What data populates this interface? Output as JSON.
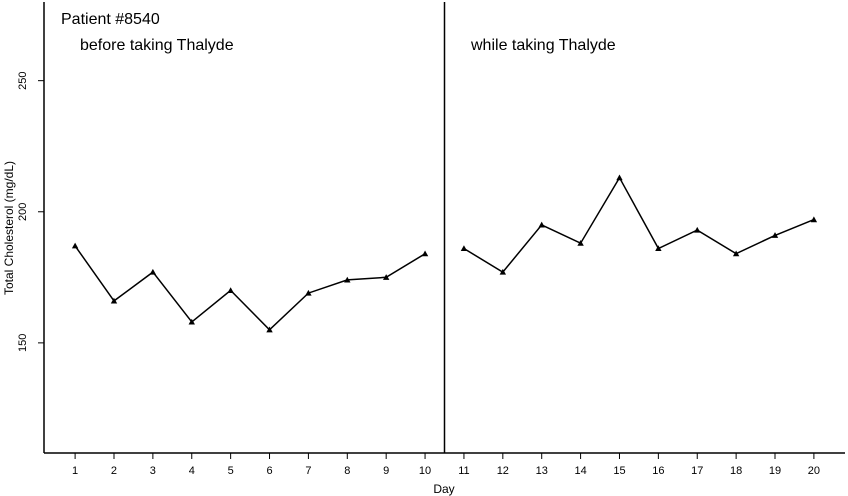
{
  "chart_data": {
    "type": "line",
    "title": "Patient #8540",
    "xlabel": "Day",
    "ylabel": "Total Cholesterol (mg/dL)",
    "xlim": [
      0.2,
      20.8
    ],
    "ylim": [
      108,
      280
    ],
    "yticks": [
      150,
      200,
      250
    ],
    "xticks": [
      1,
      2,
      3,
      4,
      5,
      6,
      7,
      8,
      9,
      10,
      11,
      12,
      13,
      14,
      15,
      16,
      17,
      18,
      19,
      20
    ],
    "phase_divider_x": 10.5,
    "phases": [
      {
        "label": "before taking Thalyde"
      },
      {
        "label": "while taking Thalyde"
      }
    ],
    "series": [
      {
        "x": [
          1,
          2,
          3,
          4,
          5,
          6,
          7,
          8,
          9,
          10
        ],
        "values": [
          187,
          166,
          177,
          158,
          170,
          155,
          169,
          174,
          175,
          184
        ]
      },
      {
        "x": [
          11,
          12,
          13,
          14,
          15,
          16,
          17,
          18,
          19,
          20
        ],
        "values": [
          186,
          177,
          195,
          188,
          213,
          186,
          193,
          184,
          191,
          197
        ]
      }
    ],
    "colors": {
      "line": "#000000",
      "marker": "#000000"
    },
    "marker": "triangle"
  }
}
